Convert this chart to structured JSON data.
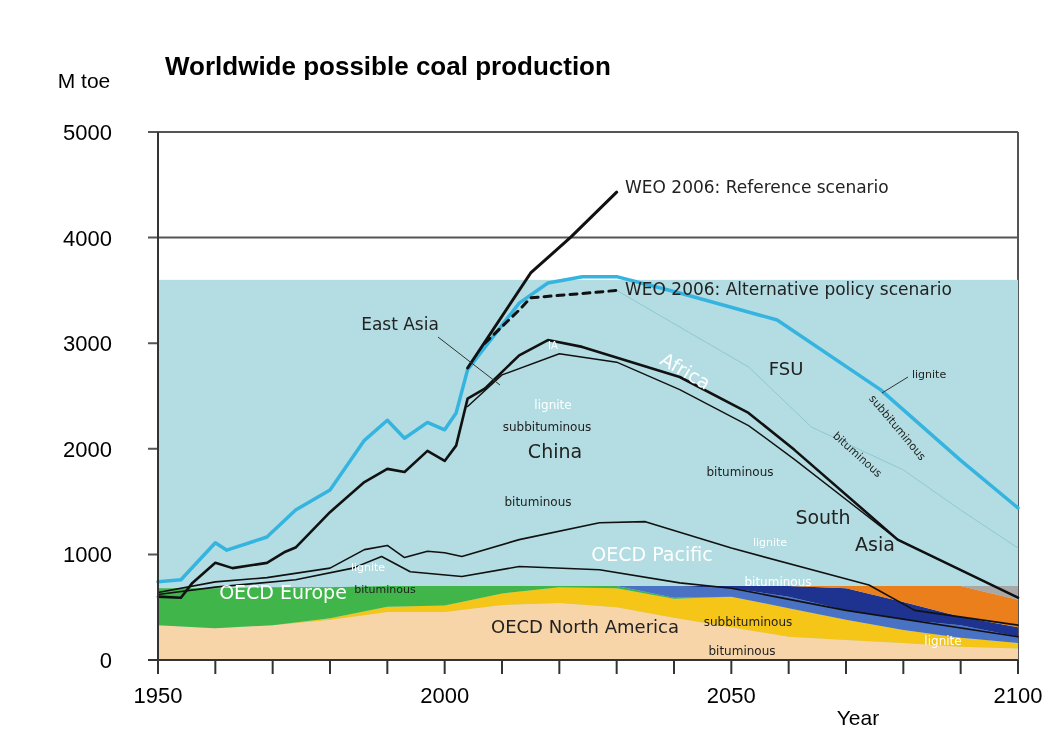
{
  "chart_data": {
    "type": "area",
    "stacked": true,
    "title": "Worldwide possible coal production",
    "ylabel": "M toe",
    "xlabel": "Year",
    "xlim": [
      1950,
      2100
    ],
    "ylim": [
      0,
      5000
    ],
    "xticks": [
      1950,
      {
        "value": 1960,
        "label": null
      },
      {
        "value": 1970,
        "label": null
      },
      {
        "value": 1980,
        "label": null
      },
      {
        "value": 1990,
        "label": null
      },
      2000,
      {
        "value": 2010,
        "label": null
      },
      {
        "value": 2020,
        "label": null
      },
      {
        "value": 2030,
        "label": null
      },
      {
        "value": 2040,
        "label": null
      },
      2050,
      {
        "value": 2060,
        "label": null
      },
      {
        "value": 2070,
        "label": null
      },
      {
        "value": 2080,
        "label": null
      },
      {
        "value": 2090,
        "label": null
      },
      2100
    ],
    "yticks": [
      0,
      1000,
      2000,
      3000,
      4000,
      5000
    ],
    "grid": "y",
    "bands": [
      {
        "axis": "y",
        "from": 0,
        "to": 3600,
        "color": "#b3dde2"
      }
    ],
    "x": [
      1950,
      1960,
      1970,
      1980,
      1990,
      2000,
      2010,
      2020,
      2030,
      2040,
      2050,
      2060,
      2070,
      2080,
      2090,
      2100
    ],
    "series": [
      {
        "color": "#f8d5a8",
        "values": [
          330,
          300,
          330,
          380,
          455,
          455,
          520,
          540,
          500,
          400,
          310,
          220,
          190,
          160,
          125,
          110
        ]
      },
      {
        "color": "#f5c518",
        "values": [
          null,
          null,
          0,
          15,
          50,
          60,
          110,
          150,
          180,
          180,
          290,
          270,
          190,
          125,
          85,
          50
        ]
      },
      {
        "color": "#3fb54a",
        "values": [
          350,
          380,
          360,
          295,
          195,
          185,
          70,
          10,
          20,
          10,
          0,
          null,
          null,
          null,
          null,
          null
        ]
      },
      {
        "color": "#4a72c4",
        "values": [
          null,
          null,
          null,
          null,
          null,
          null,
          null,
          null,
          0,
          110,
          80,
          110,
          90,
          95,
          120,
          60
        ]
      },
      {
        "color": "#1e3390",
        "values": [
          null,
          null,
          null,
          null,
          null,
          null,
          null,
          null,
          null,
          0,
          20,
          100,
          210,
          170,
          80,
          90
        ]
      },
      {
        "color": "#ea7f1c",
        "values": [
          null,
          null,
          null,
          null,
          null,
          null,
          null,
          null,
          null,
          null,
          null,
          0,
          20,
          150,
          290,
          260
        ]
      },
      {
        "color": "#a8a8a8",
        "values": [
          null,
          null,
          null,
          null,
          null,
          null,
          null,
          null,
          null,
          null,
          null,
          null,
          null,
          null,
          0,
          130
        ]
      },
      {
        "type": "line",
        "color": "#36b4e0",
        "x": [
          1950,
          1954,
          1960,
          1962,
          1969,
          1974,
          1980,
          1986,
          1990,
          1993,
          1997,
          2000,
          2002,
          2004,
          2013,
          2018,
          2024,
          2030,
          2041,
          2058,
          2076,
          2090,
          2100
        ],
        "values": [
          740,
          760,
          1110,
          1040,
          1165,
          1420,
          1610,
          2080,
          2270,
          2100,
          2250,
          2180,
          2340,
          2750,
          3380,
          3570,
          3630,
          3630,
          3475,
          3220,
          2560,
          1890,
          1440
        ]
      },
      {
        "type": "line",
        "color": "#8fc9d0",
        "x": [
          2030,
          2053,
          2064,
          2080,
          2090,
          2100
        ],
        "values": [
          3500,
          2775,
          2205,
          1800,
          1420,
          1060
        ]
      },
      {
        "type": "line",
        "color": "#111111",
        "x": [
          1950,
          1954,
          1956,
          1960,
          1963,
          1969,
          1972,
          1974,
          1980,
          1986,
          1990,
          1993,
          1997,
          2000,
          2002,
          2004,
          2007,
          2013,
          2018,
          2024,
          2041,
          2053,
          2061,
          2079,
          2100
        ],
        "values": [
          600,
          590,
          730,
          920,
          870,
          920,
          1020,
          1065,
          1400,
          1685,
          1810,
          1780,
          1980,
          1885,
          2030,
          2475,
          2570,
          2885,
          3030,
          2965,
          2680,
          2340,
          1990,
          1140,
          590
        ]
      },
      {
        "type": "line",
        "color": "#111111",
        "x": [
          2004,
          2010,
          2020,
          2030,
          2041,
          2053,
          2061,
          2079,
          2100
        ],
        "values": [
          2400,
          2700,
          2900,
          2820,
          2560,
          2220,
          1900,
          1140,
          590
        ]
      },
      {
        "type": "line",
        "color": "#111111",
        "x": [
          1950,
          1960,
          1969,
          1980,
          1986,
          1990,
          1993,
          1997,
          2000,
          2003,
          2013,
          2027,
          2035,
          2050,
          2074,
          2082,
          2100
        ],
        "values": [
          640,
          740,
          780,
          870,
          1045,
          1085,
          970,
          1030,
          1015,
          980,
          1140,
          1300,
          1310,
          1060,
          710,
          470,
          330
        ]
      },
      {
        "type": "line",
        "color": "#111111",
        "x": [
          1950,
          1960,
          1974,
          1984,
          1989,
          1994,
          2003,
          2013,
          2027,
          2041,
          2050,
          2070,
          2100
        ],
        "values": [
          620,
          690,
          760,
          870,
          980,
          835,
          790,
          885,
          855,
          730,
          680,
          470,
          220
        ]
      },
      {
        "type": "line",
        "color": "#111111",
        "x": [
          2004,
          2015,
          2022,
          2030
        ],
        "values": [
          2765,
          3665,
          4005,
          4430
        ]
      },
      {
        "type": "line",
        "color": "#111111",
        "line_style": "dashed",
        "x": [
          2007,
          2013,
          2015,
          2027,
          2030
        ],
        "values": [
          3000,
          3315,
          3430,
          3485,
          3500
        ]
      }
    ],
    "annotations": [
      "East Asia",
      "IA",
      "lignite",
      "subbituminous",
      "China",
      "bituminous",
      "Africa",
      "FSU",
      "lignite",
      "subbituminous",
      "bituminous",
      "bituminous",
      "South",
      "Asia",
      "OECD Pacific",
      "lignite",
      "bituminous",
      "lignite",
      "bituminous",
      "OECD Europe",
      "OECD North America",
      "subbituminous",
      "bituminous",
      "lignite",
      "WEO 2006: Reference scenario",
      "WEO 2006: Alternative policy scenario"
    ]
  }
}
